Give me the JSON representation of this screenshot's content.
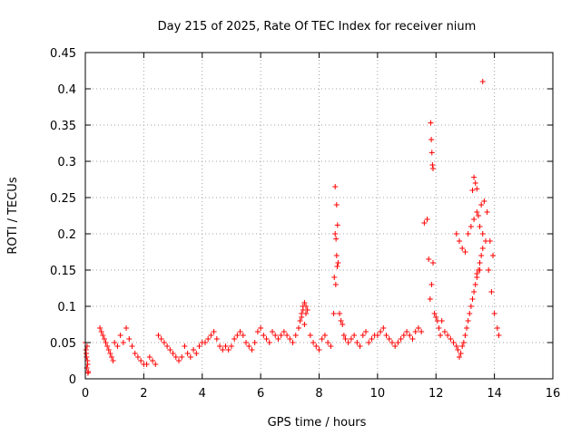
{
  "chart_data": {
    "type": "scatter",
    "title": "Day 215 of 2025, Rate Of TEC Index for receiver nium",
    "xlabel": "GPS time / hours",
    "ylabel": "ROTI / TECUs",
    "xlim": [
      0,
      16
    ],
    "ylim": [
      0,
      0.45
    ],
    "x_ticks": [
      0,
      2,
      4,
      6,
      8,
      10,
      12,
      14,
      16
    ],
    "y_ticks": [
      0,
      0.05,
      0.1,
      0.15,
      0.2,
      0.25,
      0.3,
      0.35,
      0.4,
      0.45
    ],
    "x_tick_labels": [
      "0",
      "2",
      "4",
      "6",
      "8",
      "10",
      "12",
      "14",
      "16"
    ],
    "y_tick_labels": [
      "0",
      "0.05",
      "0.1",
      "0.15",
      "0.2",
      "0.25",
      "0.3",
      "0.35",
      "0.4",
      "0.45"
    ],
    "grid": true,
    "marker": "+",
    "color": "#ff0000",
    "series": [
      {
        "name": "ROTI",
        "x": [
          0.0,
          0.02,
          0.04,
          0.06,
          0.08,
          0.1,
          0.03,
          0.07,
          0.05,
          0.09,
          0.5,
          0.55,
          0.6,
          0.65,
          0.7,
          0.75,
          0.8,
          0.85,
          0.9,
          0.95,
          1.0,
          1.1,
          1.2,
          1.3,
          1.4,
          1.5,
          1.6,
          1.7,
          1.8,
          1.9,
          2.0,
          2.1,
          2.2,
          2.3,
          2.4,
          2.5,
          2.6,
          2.7,
          2.8,
          2.9,
          3.0,
          3.1,
          3.2,
          3.3,
          3.4,
          3.5,
          3.6,
          3.7,
          3.8,
          3.9,
          4.0,
          4.1,
          4.2,
          4.3,
          4.4,
          4.5,
          4.6,
          4.7,
          4.8,
          4.9,
          5.0,
          5.1,
          5.2,
          5.3,
          5.4,
          5.5,
          5.6,
          5.7,
          5.8,
          5.9,
          6.0,
          6.1,
          6.2,
          6.3,
          6.4,
          6.5,
          6.6,
          6.7,
          6.8,
          6.9,
          7.0,
          7.1,
          7.2,
          7.3,
          7.35,
          7.4,
          7.45,
          7.5,
          7.55,
          7.6,
          7.4,
          7.5,
          7.45,
          7.55,
          7.7,
          7.8,
          7.9,
          8.0,
          8.1,
          8.2,
          8.3,
          8.4,
          8.5,
          8.52,
          8.55,
          8.57,
          8.6,
          8.62,
          8.65,
          8.55,
          8.6,
          8.63,
          8.58,
          8.7,
          8.75,
          8.8,
          8.85,
          8.9,
          9.0,
          9.1,
          9.2,
          9.3,
          9.4,
          9.5,
          9.6,
          9.7,
          9.8,
          9.9,
          10.0,
          10.1,
          10.2,
          10.3,
          10.4,
          10.5,
          10.6,
          10.7,
          10.8,
          10.9,
          11.0,
          11.1,
          11.2,
          11.3,
          11.4,
          11.5,
          11.6,
          11.7,
          11.75,
          11.8,
          11.85,
          11.9,
          11.82,
          11.84,
          11.86,
          11.88,
          11.9,
          11.95,
          12.0,
          12.05,
          12.1,
          12.15,
          12.2,
          12.3,
          12.4,
          12.5,
          12.6,
          12.7,
          12.75,
          12.8,
          12.85,
          12.9,
          12.95,
          13.0,
          13.05,
          13.1,
          13.15,
          13.2,
          13.25,
          13.3,
          13.35,
          13.4,
          13.45,
          13.5,
          13.55,
          13.6,
          12.7,
          12.8,
          12.9,
          13.0,
          13.1,
          13.2,
          13.3,
          13.4,
          13.5,
          13.6,
          13.7,
          13.8,
          13.9,
          14.0,
          14.1,
          14.15,
          13.65,
          13.75,
          13.85,
          13.95,
          13.3,
          13.35,
          13.4,
          13.25,
          13.45,
          13.55,
          13.6,
          13.5,
          13.4
        ],
        "y": [
          0.05,
          0.04,
          0.03,
          0.045,
          0.02,
          0.01,
          0.035,
          0.025,
          0.015,
          0.008,
          0.07,
          0.065,
          0.06,
          0.055,
          0.05,
          0.045,
          0.04,
          0.035,
          0.03,
          0.025,
          0.05,
          0.045,
          0.06,
          0.05,
          0.07,
          0.055,
          0.045,
          0.035,
          0.03,
          0.025,
          0.02,
          0.02,
          0.03,
          0.025,
          0.02,
          0.06,
          0.055,
          0.05,
          0.045,
          0.04,
          0.035,
          0.03,
          0.025,
          0.03,
          0.045,
          0.035,
          0.03,
          0.04,
          0.035,
          0.045,
          0.05,
          0.05,
          0.055,
          0.06,
          0.065,
          0.055,
          0.045,
          0.04,
          0.045,
          0.04,
          0.045,
          0.055,
          0.06,
          0.065,
          0.06,
          0.05,
          0.045,
          0.04,
          0.05,
          0.065,
          0.07,
          0.06,
          0.055,
          0.05,
          0.065,
          0.06,
          0.055,
          0.06,
          0.065,
          0.06,
          0.055,
          0.05,
          0.06,
          0.07,
          0.08,
          0.09,
          0.1,
          0.105,
          0.1,
          0.095,
          0.085,
          0.075,
          0.095,
          0.09,
          0.06,
          0.05,
          0.045,
          0.04,
          0.055,
          0.06,
          0.05,
          0.045,
          0.09,
          0.14,
          0.2,
          0.13,
          0.17,
          0.155,
          0.16,
          0.265,
          0.24,
          0.212,
          0.193,
          0.09,
          0.08,
          0.075,
          0.06,
          0.055,
          0.05,
          0.055,
          0.06,
          0.05,
          0.045,
          0.06,
          0.065,
          0.05,
          0.055,
          0.06,
          0.06,
          0.065,
          0.07,
          0.06,
          0.055,
          0.05,
          0.045,
          0.05,
          0.055,
          0.06,
          0.065,
          0.06,
          0.055,
          0.065,
          0.07,
          0.065,
          0.215,
          0.22,
          0.165,
          0.11,
          0.13,
          0.16,
          0.353,
          0.33,
          0.312,
          0.295,
          0.29,
          0.09,
          0.085,
          0.08,
          0.07,
          0.06,
          0.08,
          0.065,
          0.06,
          0.055,
          0.05,
          0.045,
          0.04,
          0.03,
          0.035,
          0.045,
          0.05,
          0.06,
          0.07,
          0.08,
          0.09,
          0.1,
          0.11,
          0.12,
          0.13,
          0.14,
          0.15,
          0.16,
          0.17,
          0.18,
          0.2,
          0.19,
          0.18,
          0.175,
          0.2,
          0.21,
          0.22,
          0.23,
          0.21,
          0.2,
          0.19,
          0.15,
          0.12,
          0.09,
          0.07,
          0.06,
          0.245,
          0.23,
          0.19,
          0.17,
          0.278,
          0.27,
          0.262,
          0.26,
          0.225,
          0.24,
          0.41,
          0.15,
          0.145
        ]
      }
    ]
  }
}
